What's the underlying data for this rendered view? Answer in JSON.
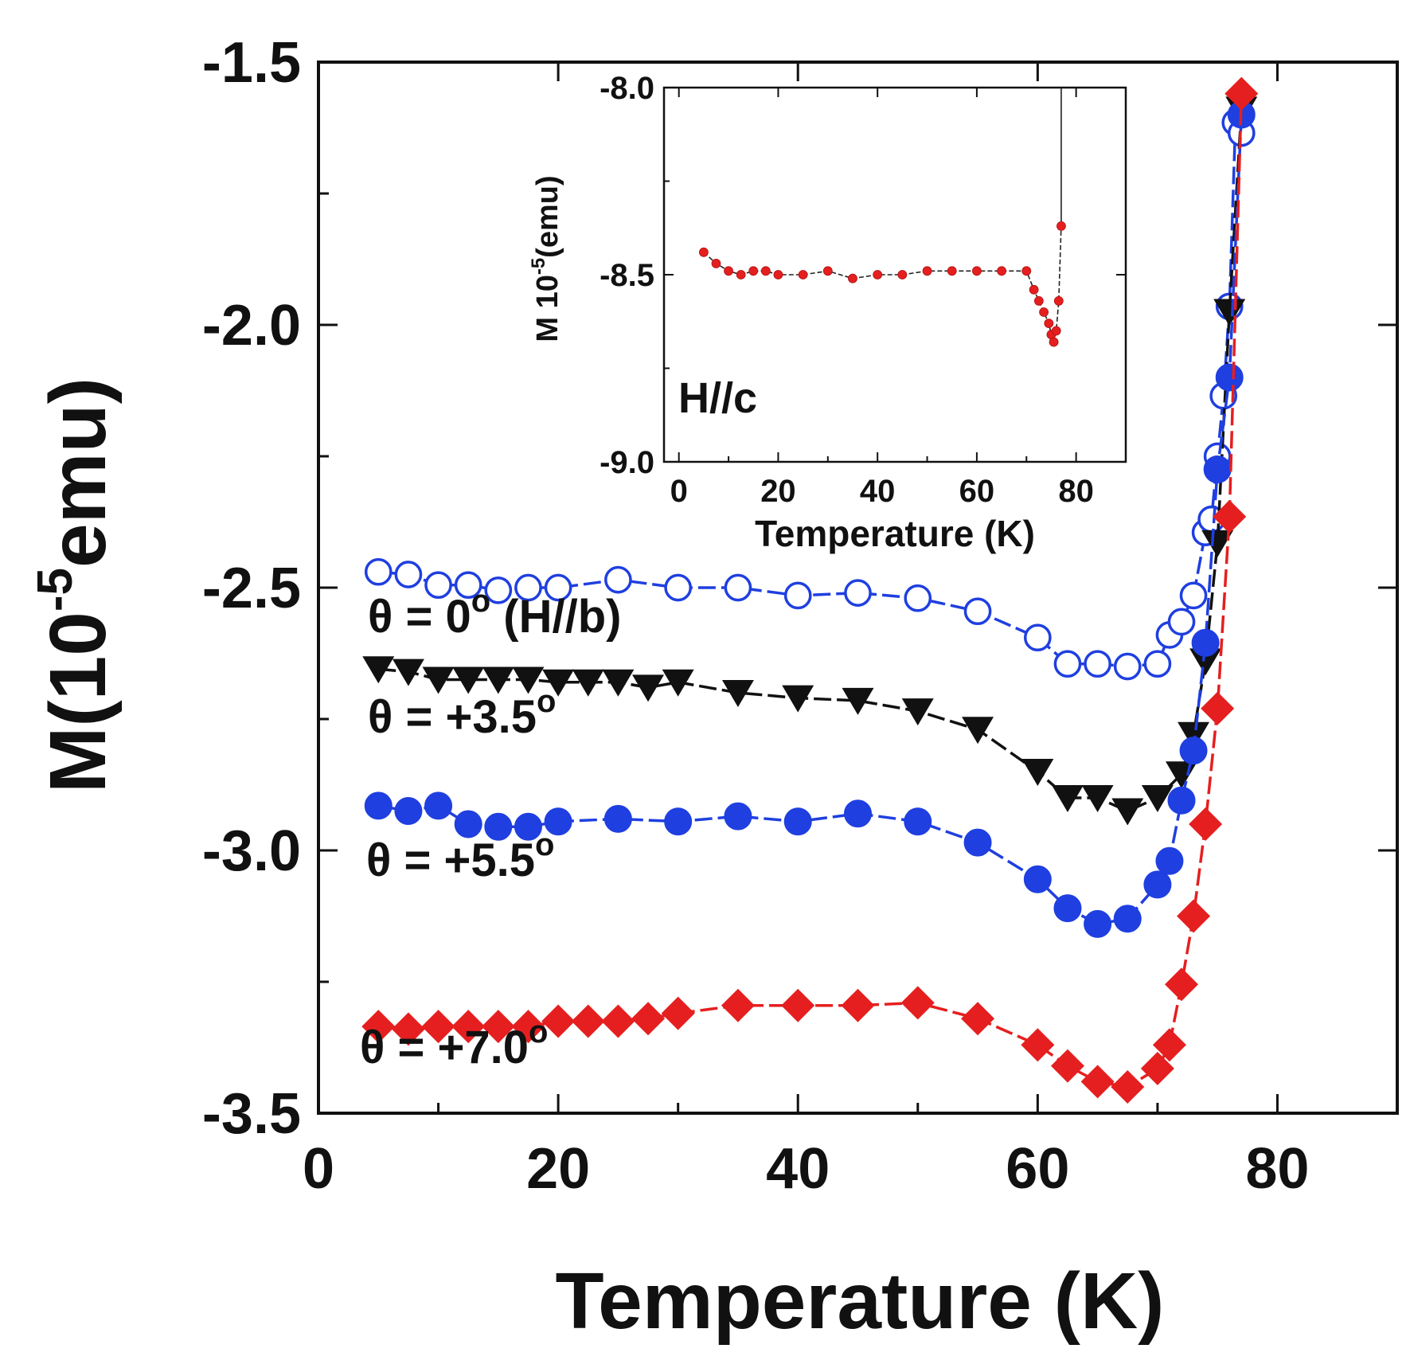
{
  "chart_data": [
    {
      "type": "line",
      "title": "",
      "xlabel": "Temperature (K)",
      "ylabel": "M(10^-5emu)",
      "ylabel_parts": {
        "pre": "M(10",
        "sup": "-5",
        "post": "emu)"
      },
      "xlim": [
        0,
        90
      ],
      "ylim": [
        -3.5,
        -1.5
      ],
      "xticks": [
        0,
        20,
        40,
        60,
        80
      ],
      "xtick_labels": [
        "0",
        "20",
        "40",
        "60",
        "80"
      ],
      "yticks": [
        -3.5,
        -3.0,
        -2.5,
        -2.0,
        -1.5
      ],
      "ytick_labels": [
        "-3.5",
        "-3.0",
        "-2.5",
        "-2.0",
        "-1.5"
      ],
      "grid": false,
      "series": [
        {
          "name": "theta = 0 deg (H//b)",
          "annotation": {
            "prefix": "θ = 0",
            "sup": "o",
            "suffix": " (H//b)"
          },
          "color": "#1f3fe0",
          "marker": "open-circle",
          "x": [
            5,
            7.5,
            10,
            12.5,
            15,
            17.5,
            20,
            25,
            30,
            35,
            40,
            45,
            50,
            55,
            60,
            62.5,
            65,
            67.5,
            70,
            71,
            72,
            73,
            74,
            74.5,
            75,
            75.5,
            76,
            76.5,
            77
          ],
          "y": [
            -2.47,
            -2.475,
            -2.495,
            -2.495,
            -2.505,
            -2.5,
            -2.5,
            -2.485,
            -2.5,
            -2.5,
            -2.515,
            -2.51,
            -2.52,
            -2.545,
            -2.595,
            -2.645,
            -2.645,
            -2.65,
            -2.645,
            -2.59,
            -2.565,
            -2.515,
            -2.395,
            -2.37,
            -2.25,
            -2.135,
            -1.965,
            -1.615,
            -1.635
          ]
        },
        {
          "name": "theta = +3.5 deg",
          "annotation": {
            "prefix": "θ = +3.5",
            "sup": "o",
            "suffix": ""
          },
          "color": "#111111",
          "marker": "down-triangle",
          "x": [
            5,
            7.5,
            10,
            12.5,
            15,
            17.5,
            20,
            22.5,
            25,
            27.5,
            30,
            35,
            40,
            45,
            50,
            55,
            60,
            62.5,
            65,
            67.5,
            70,
            72,
            73,
            74,
            75,
            76,
            77
          ],
          "y": [
            -2.655,
            -2.66,
            -2.675,
            -2.675,
            -2.675,
            -2.675,
            -2.68,
            -2.68,
            -2.68,
            -2.69,
            -2.68,
            -2.7,
            -2.71,
            -2.715,
            -2.735,
            -2.77,
            -2.85,
            -2.9,
            -2.9,
            -2.925,
            -2.9,
            -2.855,
            -2.78,
            -2.64,
            -2.415,
            -1.975,
            -1.59
          ]
        },
        {
          "name": "theta = +5.5 deg",
          "annotation": {
            "prefix": "θ = +5.5",
            "sup": "o",
            "suffix": ""
          },
          "color": "#1f3fe0",
          "marker": "filled-circle",
          "x": [
            5,
            7.5,
            10,
            12.5,
            15,
            17.5,
            20,
            25,
            30,
            35,
            40,
            45,
            50,
            55,
            60,
            62.5,
            65,
            67.5,
            70,
            71,
            72,
            73,
            74,
            75,
            76,
            77
          ],
          "y": [
            -2.915,
            -2.925,
            -2.915,
            -2.95,
            -2.955,
            -2.955,
            -2.945,
            -2.94,
            -2.945,
            -2.935,
            -2.945,
            -2.93,
            -2.945,
            -2.985,
            -3.055,
            -3.11,
            -3.14,
            -3.13,
            -3.065,
            -3.02,
            -2.905,
            -2.81,
            -2.605,
            -2.275,
            -2.1,
            -1.6
          ]
        },
        {
          "name": "theta = +7.0 deg",
          "annotation": {
            "prefix": "θ = +7.0",
            "sup": "o",
            "suffix": ""
          },
          "color": "#e51f1f",
          "marker": "diamond",
          "x": [
            5,
            7.5,
            10,
            12.5,
            15,
            17.5,
            20,
            22.5,
            25,
            27.5,
            30,
            35,
            40,
            45,
            50,
            55,
            60,
            62.5,
            65,
            67.5,
            70,
            71,
            72,
            73,
            74,
            75,
            76,
            77
          ],
          "y": [
            -3.335,
            -3.34,
            -3.335,
            -3.335,
            -3.335,
            -3.335,
            -3.325,
            -3.325,
            -3.325,
            -3.32,
            -3.31,
            -3.295,
            -3.295,
            -3.295,
            -3.29,
            -3.32,
            -3.37,
            -3.41,
            -3.44,
            -3.45,
            -3.415,
            -3.37,
            -3.255,
            -3.125,
            -2.95,
            -2.73,
            -2.365,
            -1.56
          ]
        }
      ]
    },
    {
      "type": "scatter",
      "title": "",
      "xlabel": "Temperature (K)",
      "ylabel": "M 10^-5(emu)",
      "ylabel_parts": {
        "pre": "M 10",
        "sup": "-5",
        "post": "(emu)"
      },
      "annotation": "H//c",
      "xlim": [
        -3,
        90
      ],
      "ylim": [
        -9.0,
        -8.0
      ],
      "xticks": [
        0,
        20,
        40,
        60,
        80
      ],
      "xtick_labels": [
        "0",
        "20",
        "40",
        "60",
        "80"
      ],
      "yticks": [
        -9.0,
        -8.5,
        -8.0
      ],
      "ytick_labels": [
        "-9.0",
        "-8.5",
        "-8.0"
      ],
      "grid": false,
      "series": [
        {
          "name": "H//c",
          "color": "#e51f1f",
          "marker": "filled-circle",
          "x": [
            5,
            7.5,
            10,
            12.5,
            15,
            17.5,
            20,
            25,
            30,
            35,
            40,
            45,
            50,
            55,
            60,
            65,
            70,
            71.5,
            72.5,
            73.5,
            74.5,
            75,
            75.5,
            76,
            76.5,
            77
          ],
          "y": [
            -8.44,
            -8.47,
            -8.49,
            -8.5,
            -8.49,
            -8.49,
            -8.5,
            -8.5,
            -8.49,
            -8.51,
            -8.5,
            -8.5,
            -8.49,
            -8.49,
            -8.49,
            -8.49,
            -8.49,
            -8.54,
            -8.57,
            -8.6,
            -8.63,
            -8.66,
            -8.68,
            -8.65,
            -8.57,
            -8.37
          ]
        }
      ]
    }
  ]
}
